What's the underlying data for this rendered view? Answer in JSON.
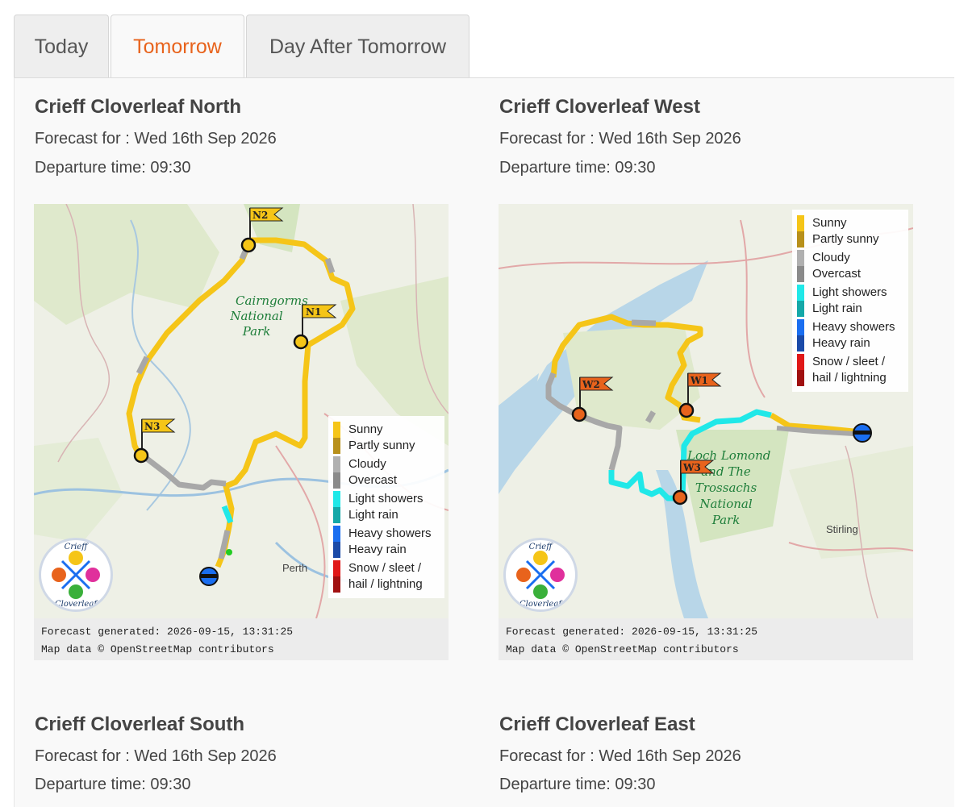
{
  "tabs": [
    {
      "label": "Today"
    },
    {
      "label": "Tomorrow"
    },
    {
      "label": "Day After Tomorrow"
    }
  ],
  "active_tab": "Tomorrow",
  "accent_color": "#e8631c",
  "routes": [
    {
      "title": "Crieff Cloverleaf North",
      "forecast": "Forecast for : Wed 16th Sep 2026",
      "departure": "Departure time: 09:30",
      "map_labels": [
        "Cairngorms",
        "National",
        "Park"
      ],
      "places": [
        "Perth"
      ],
      "flags": [
        "N1",
        "N2",
        "N3"
      ],
      "footer_generated": "Forecast generated: 2026-09-15, 13:31:25",
      "footer_attribution": "Map data © OpenStreetMap contributors"
    },
    {
      "title": "Crieff Cloverleaf West",
      "forecast": "Forecast for : Wed 16th Sep 2026",
      "departure": "Departure time: 09:30",
      "map_labels": [
        "Loch Lomond",
        "and The",
        "Trossachs",
        "National",
        "Park"
      ],
      "places": [
        "Stirling"
      ],
      "flags": [
        "W1",
        "W2",
        "W3"
      ],
      "footer_generated": "Forecast generated: 2026-09-15, 13:31:25",
      "footer_attribution": "Map data © OpenStreetMap contributors"
    },
    {
      "title": "Crieff Cloverleaf South",
      "forecast": "Forecast for : Wed 16th Sep 2026",
      "departure": "Departure time: 09:30"
    },
    {
      "title": "Crieff Cloverleaf East",
      "forecast": "Forecast for : Wed 16th Sep 2026",
      "departure": "Departure time: 09:30"
    }
  ],
  "legend": [
    {
      "labels": [
        "Sunny",
        "Partly sunny"
      ],
      "colors": [
        "#f5c518",
        "#b8901a"
      ]
    },
    {
      "labels": [
        "Cloudy",
        "Overcast"
      ],
      "colors": [
        "#b0b0b0",
        "#8a8a8a"
      ]
    },
    {
      "labels": [
        "Light showers",
        "Light rain"
      ],
      "colors": [
        "#20e8e8",
        "#14a8a8"
      ]
    },
    {
      "labels": [
        "Heavy showers",
        "Heavy rain"
      ],
      "colors": [
        "#1a6ef0",
        "#1a4aa8"
      ]
    },
    {
      "labels": [
        "Snow / sleet /",
        "hail / lightning"
      ],
      "colors": [
        "#e01818",
        "#a01010"
      ]
    }
  ],
  "logo_text": [
    "Crieff",
    "Cloverleaf"
  ]
}
